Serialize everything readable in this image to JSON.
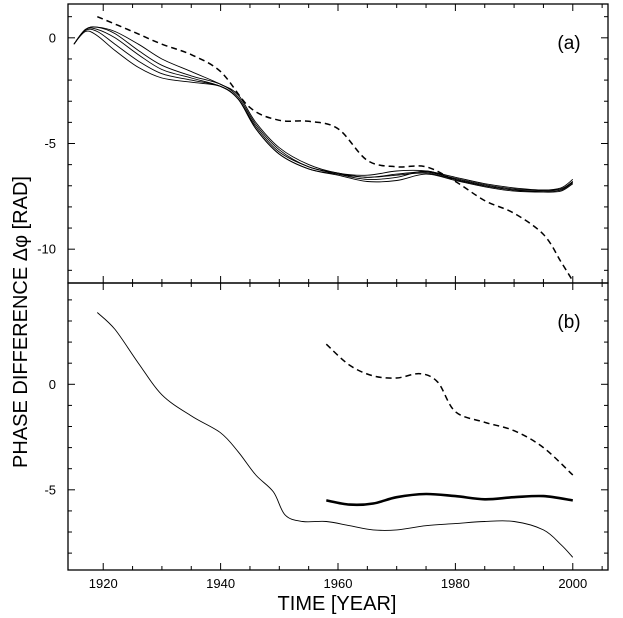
{
  "chart_data": {
    "type": "line",
    "xlabel": "TIME [YEAR]",
    "ylabel": "PHASE DIFFERENCE Δφ [RAD]",
    "xlim": [
      1914,
      2006
    ],
    "xticks": [
      1920,
      1940,
      1960,
      1980,
      2000
    ],
    "panels": [
      {
        "label": "(a)",
        "ylim": [
          -11.6,
          1.6
        ],
        "yticks": [
          0,
          -5,
          -10
        ],
        "series": [
          {
            "style": "dashed",
            "x": [
              1919,
              1925,
              1930,
              1935,
              1940,
              1945,
              1950,
              1955,
              1960,
              1965,
              1970,
              1975,
              1980,
              1985,
              1990,
              1995,
              1998,
              2000
            ],
            "y": [
              1.0,
              0.3,
              -0.3,
              -0.8,
              -1.6,
              -3.3,
              -3.9,
              -3.95,
              -4.3,
              -5.8,
              -6.1,
              -6.1,
              -6.8,
              -7.7,
              -8.3,
              -9.3,
              -10.6,
              -11.5
            ]
          },
          {
            "style": "thin",
            "x": [
              1915,
              1917,
              1919,
              1922,
              1926,
              1930,
              1935,
              1940,
              1943,
              1946,
              1950,
              1955,
              1960,
              1965,
              1970,
              1975,
              1980,
              1985,
              1990,
              1995,
              1998,
              2000
            ],
            "y": [
              -0.3,
              0.4,
              0.5,
              0.3,
              -0.3,
              -1.0,
              -1.6,
              -2.2,
              -2.7,
              -4.0,
              -5.2,
              -6.0,
              -6.4,
              -6.5,
              -6.3,
              -6.3,
              -6.6,
              -6.9,
              -7.1,
              -7.2,
              -7.1,
              -6.7
            ]
          },
          {
            "style": "thin",
            "x": [
              1915,
              1917,
              1919,
              1922,
              1926,
              1930,
              1935,
              1940,
              1943,
              1946,
              1950,
              1955,
              1960,
              1965,
              1970,
              1975,
              1980,
              1985,
              1990,
              1995,
              1998,
              2000
            ],
            "y": [
              -0.3,
              0.4,
              0.5,
              0.2,
              -0.6,
              -1.3,
              -1.8,
              -2.2,
              -2.8,
              -4.1,
              -5.3,
              -6.1,
              -6.4,
              -6.6,
              -6.45,
              -6.35,
              -6.65,
              -6.95,
              -7.15,
              -7.2,
              -7.15,
              -6.8
            ]
          },
          {
            "style": "thin",
            "x": [
              1915,
              1917,
              1919,
              1922,
              1926,
              1930,
              1935,
              1940,
              1943,
              1946,
              1950,
              1955,
              1960,
              1965,
              1970,
              1975,
              1980,
              1985,
              1990,
              1995,
              1998,
              2000
            ],
            "y": [
              -0.3,
              0.4,
              0.4,
              0.0,
              -0.8,
              -1.5,
              -1.9,
              -2.3,
              -2.9,
              -4.2,
              -5.4,
              -6.1,
              -6.45,
              -6.7,
              -6.6,
              -6.3,
              -6.7,
              -7.0,
              -7.2,
              -7.25,
              -7.2,
              -6.85
            ]
          },
          {
            "style": "thin",
            "x": [
              1915,
              1917,
              1919,
              1922,
              1926,
              1930,
              1935,
              1940,
              1943,
              1946,
              1950,
              1955,
              1960,
              1965,
              1970,
              1975,
              1980,
              1985,
              1990,
              1995,
              1998,
              2000
            ],
            "y": [
              -0.3,
              0.35,
              0.3,
              -0.3,
              -1.1,
              -1.7,
              -2.0,
              -2.3,
              -2.9,
              -4.3,
              -5.5,
              -6.2,
              -6.5,
              -6.8,
              -6.75,
              -6.45,
              -6.75,
              -7.05,
              -7.25,
              -7.3,
              -7.25,
              -6.9
            ]
          },
          {
            "style": "thin",
            "x": [
              1915,
              1917,
              1919,
              1922,
              1926,
              1930,
              1935,
              1940,
              1943,
              1946,
              1950,
              1955,
              1960,
              1965,
              1970,
              1975,
              1980,
              1985,
              1990,
              1995,
              1998,
              2000
            ],
            "y": [
              -0.3,
              0.3,
              0.1,
              -0.6,
              -1.4,
              -1.9,
              -2.1,
              -2.3,
              -2.9,
              -4.3,
              -5.5,
              -6.2,
              -6.45,
              -6.6,
              -6.5,
              -6.4,
              -6.7,
              -7.0,
              -7.2,
              -7.25,
              -7.2,
              -6.8
            ]
          }
        ]
      },
      {
        "label": "(b)",
        "ylim": [
          -8.8,
          4.8
        ],
        "yticks": [
          0,
          -5
        ],
        "series": [
          {
            "style": "dashed",
            "x": [
              1958,
              1962,
              1966,
              1970,
              1974,
              1977,
              1980,
              1985,
              1990,
              1995,
              2000
            ],
            "y": [
              1.9,
              0.9,
              0.4,
              0.3,
              0.5,
              0.1,
              -1.3,
              -1.8,
              -2.2,
              -3.0,
              -4.3
            ]
          },
          {
            "style": "thick",
            "x": [
              1958,
              1962,
              1966,
              1970,
              1975,
              1980,
              1985,
              1990,
              1995,
              2000
            ],
            "y": [
              -5.5,
              -5.7,
              -5.65,
              -5.35,
              -5.2,
              -5.3,
              -5.45,
              -5.35,
              -5.3,
              -5.5
            ]
          },
          {
            "style": "thin",
            "x": [
              1919,
              1922,
              1926,
              1930,
              1935,
              1940,
              1943,
              1946,
              1949,
              1951,
              1954,
              1958,
              1962,
              1966,
              1970,
              1975,
              1980,
              1985,
              1990,
              1995,
              1998,
              2000
            ],
            "y": [
              3.4,
              2.6,
              1.0,
              -0.5,
              -1.5,
              -2.3,
              -3.2,
              -4.3,
              -5.1,
              -6.2,
              -6.5,
              -6.5,
              -6.7,
              -6.9,
              -6.9,
              -6.7,
              -6.6,
              -6.5,
              -6.5,
              -6.9,
              -7.6,
              -8.2
            ]
          }
        ]
      }
    ]
  }
}
